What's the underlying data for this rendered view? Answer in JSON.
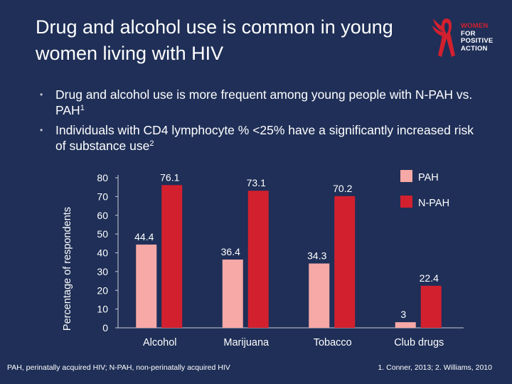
{
  "slide": {
    "title": "Drug and alcohol use is common in young women living with HIV",
    "bullets": [
      {
        "text": "Drug and alcohol use is more frequent among young people with N-PAH vs. PAH",
        "sup": "1"
      },
      {
        "text": "Individuals with CD4 lymphocyte % <25% have a significantly increased risk of substance use",
        "sup": "2"
      }
    ],
    "bullet_icon": "•",
    "footer_left": "PAH, perinatally acquired HIV; N-PAH, non-perinatally acquired HIV",
    "footer_right": "1. Conner, 2013; 2. Williams, 2010"
  },
  "logo": {
    "lines": [
      "WOMEN",
      "FOR",
      "POSITIVE",
      "ACTION"
    ],
    "colors": {
      "accent": "#d3202f",
      "text": "#ffffff"
    }
  },
  "colors": {
    "background": "#1f2f57",
    "pah": "#f6a9a6",
    "npah": "#d3202f",
    "axis": "#c9cbd6"
  },
  "chart_data": {
    "type": "bar",
    "categories": [
      "Alcohol",
      "Marijuana",
      "Tobacco",
      "Club drugs"
    ],
    "series": [
      {
        "name": "PAH",
        "values": [
          44.4,
          36.4,
          34.3,
          3
        ]
      },
      {
        "name": "N-PAH",
        "values": [
          76.1,
          73.1,
          70.2,
          22.4
        ]
      }
    ],
    "value_labels": [
      [
        "44.4",
        "36.4",
        "34.3",
        "3"
      ],
      [
        "76.1",
        "73.1",
        "70.2",
        "22.4"
      ]
    ],
    "ylabel": "Percentage of respondents",
    "xlabel": "",
    "ylim": [
      0,
      80
    ],
    "yticks": [
      0,
      10,
      20,
      30,
      40,
      50,
      60,
      70,
      80
    ],
    "legend": "top-right",
    "grid": false
  }
}
